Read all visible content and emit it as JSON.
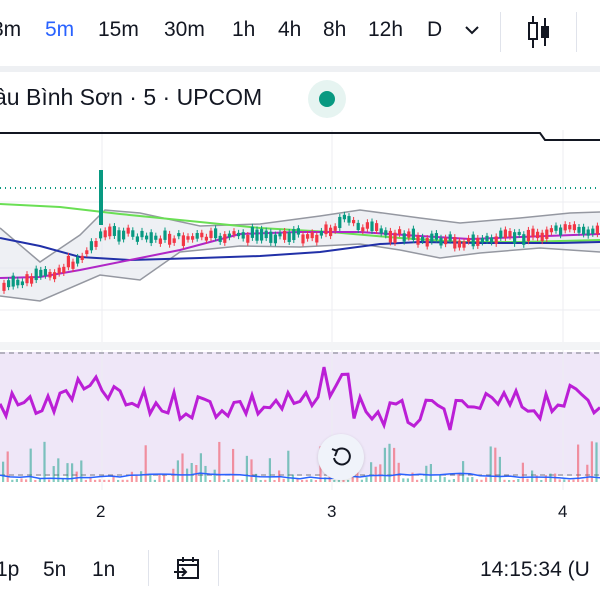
{
  "toolbar": {
    "intervals": [
      "3m",
      "5m",
      "15m",
      "30m",
      "1h",
      "4h",
      "8h",
      "12h",
      "D"
    ],
    "active_interval": "5m"
  },
  "legend": {
    "symbol_title": "âu Bình Sơn · 5 · UPCOM",
    "status_color": "#089981"
  },
  "x_axis": {
    "labels": [
      "2",
      "3",
      "4"
    ]
  },
  "bottom_bar": {
    "ranges": [
      "1p",
      "5n",
      "1n"
    ],
    "clock": "14:15:34 (U"
  },
  "icons": {
    "interval_dropdown": "chevron-down-icon",
    "chart_type": "candlestick-icon",
    "reset": "reset-chart-icon",
    "goto_date": "calendar-goto-icon"
  },
  "colors": {
    "active": "#2962ff",
    "up": "#089981",
    "down": "#f23645",
    "rsi": "#bb1fd6",
    "rsi_band": "#efe7f8",
    "ma_green": "#6adf54",
    "ma_navy": "#2130a8",
    "ma_purple": "#b027c7",
    "bollinger": "#9598a1",
    "volume_ma": "#2962ff"
  }
}
